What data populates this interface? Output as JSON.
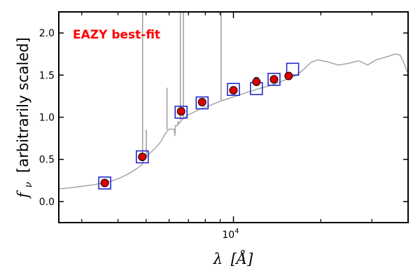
{
  "chart_data": {
    "type": "scatter",
    "title": "",
    "annotation": "EAZY best-fit",
    "annotation_color": "#ff0000",
    "xlabel": "λ [Å]",
    "ylabel": "f_ν [arbitrarily scaled]",
    "ylabel_symbol": "f",
    "ylabel_subscript": "ν",
    "ylabel_rest": "[arbitrarily scaled]",
    "xlabel_symbol": "λ",
    "xlabel_unit": "[Å]",
    "x_scale": "log",
    "xlim": [
      2500,
      40000
    ],
    "ylim": [
      -0.25,
      2.25
    ],
    "x_major_tick": {
      "value": 10000,
      "base": "10",
      "exp": "4"
    },
    "x_minor_ticks": [
      3000,
      4000,
      5000,
      6000,
      7000,
      8000,
      9000,
      20000,
      30000
    ],
    "yticks": [
      0.0,
      0.5,
      1.0,
      1.5,
      2.0
    ],
    "ytick_labels": [
      "0.0",
      "0.5",
      "1.0",
      "1.5",
      "2.0"
    ],
    "grid": false,
    "colors": {
      "spectrum": "#a0a0a0",
      "observed_fill": "#dd0000",
      "observed_edge": "#000000",
      "model_box": "#1a1acc"
    },
    "series": [
      {
        "kind": "model_spectrum",
        "line": [
          [
            2500,
            0.15
          ],
          [
            2700,
            0.16
          ],
          [
            3000,
            0.18
          ],
          [
            3300,
            0.2
          ],
          [
            3700,
            0.23
          ],
          [
            4000,
            0.27
          ],
          [
            4300,
            0.32
          ],
          [
            4600,
            0.38
          ],
          [
            4850,
            0.44
          ],
          [
            4900,
            0.5
          ],
          [
            5100,
            0.56
          ],
          [
            5400,
            0.64
          ],
          [
            5650,
            0.72
          ],
          [
            5800,
            0.8
          ],
          [
            6000,
            0.86
          ],
          [
            6300,
            0.9
          ],
          [
            6600,
            0.96
          ],
          [
            6900,
            1.02
          ],
          [
            7300,
            1.06
          ],
          [
            7700,
            1.1
          ],
          [
            8300,
            1.14
          ],
          [
            9000,
            1.19
          ],
          [
            10000,
            1.24
          ],
          [
            11000,
            1.29
          ],
          [
            12000,
            1.33
          ],
          [
            13500,
            1.38
          ],
          [
            15000,
            1.44
          ],
          [
            16500,
            1.5
          ],
          [
            17500,
            1.57
          ],
          [
            18500,
            1.65
          ],
          [
            19500,
            1.68
          ],
          [
            21000,
            1.66
          ],
          [
            23000,
            1.62
          ],
          [
            25000,
            1.64
          ],
          [
            27000,
            1.67
          ],
          [
            29000,
            1.62
          ],
          [
            31000,
            1.68
          ],
          [
            34000,
            1.72
          ],
          [
            36000,
            1.75
          ],
          [
            37500,
            1.74
          ],
          [
            38500,
            1.66
          ],
          [
            40000,
            1.52
          ]
        ],
        "emission_lines": [
          {
            "x": 4861,
            "base": 0.48,
            "peak": 2.25
          },
          {
            "x": 5007,
            "base": 0.52,
            "peak": 0.85
          },
          {
            "x": 5900,
            "base": 0.85,
            "peak": 1.35
          },
          {
            "x": 6563,
            "base": 0.97,
            "peak": 2.25
          },
          {
            "x": 6720,
            "base": 1.0,
            "peak": 2.25
          },
          {
            "x": 9069,
            "base": 1.19,
            "peak": 2.25
          }
        ],
        "absorption_dips": [
          {
            "x": 6280,
            "depth": 0.78
          },
          {
            "x": 6450,
            "depth": 0.95
          }
        ]
      },
      {
        "kind": "model_photometry",
        "x": [
          3600,
          4850,
          6600,
          7800,
          10000,
          12000,
          13800,
          16000
        ],
        "y": [
          0.22,
          0.53,
          1.06,
          1.17,
          1.33,
          1.34,
          1.45,
          1.57
        ]
      },
      {
        "kind": "observed_photometry",
        "x": [
          3600,
          4850,
          6600,
          7800,
          10000,
          12000,
          13800,
          15500
        ],
        "y": [
          0.22,
          0.53,
          1.07,
          1.18,
          1.32,
          1.42,
          1.45,
          1.49
        ],
        "err": [
          0.02,
          0.02,
          0.02,
          0.02,
          0.03,
          0.05,
          0.04,
          0.02
        ]
      }
    ]
  }
}
